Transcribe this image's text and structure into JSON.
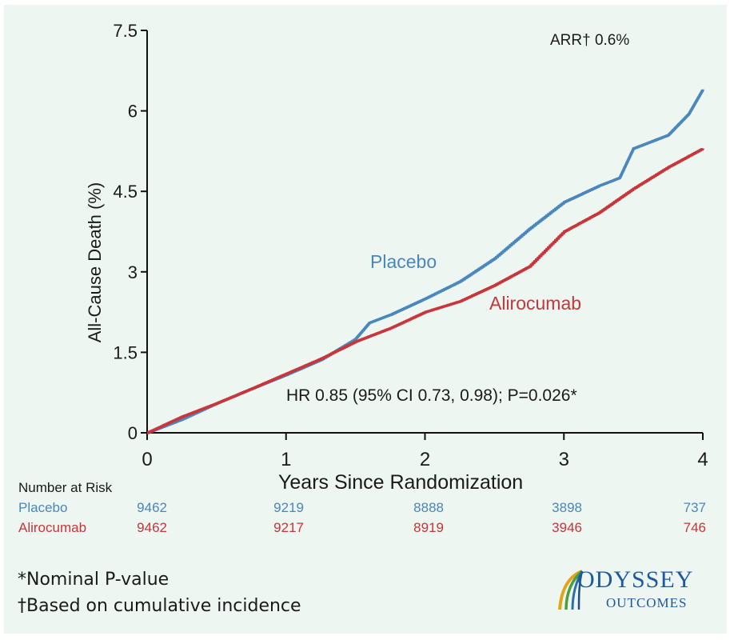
{
  "chart_data": {
    "type": "line",
    "ylabel": "All-Cause Death (%)",
    "xlabel": "Years Since Randomization",
    "xlim": [
      0,
      4
    ],
    "ylim": [
      0,
      7.5
    ],
    "x_ticks": [
      "0",
      "1",
      "2",
      "3",
      "4"
    ],
    "y_ticks": [
      "0",
      "1.5",
      "3",
      "4.5",
      "6",
      "7.5"
    ],
    "x_tick_values": [
      0,
      1,
      2,
      3,
      4
    ],
    "y_tick_values": [
      0,
      1.5,
      3,
      4.5,
      6,
      7.5
    ],
    "grid": false,
    "series": [
      {
        "name": "Placebo",
        "color": "#4a87bd",
        "x": [
          0,
          0.25,
          0.5,
          0.75,
          1.0,
          1.25,
          1.5,
          1.6,
          1.75,
          2.0,
          2.25,
          2.5,
          2.75,
          3.0,
          3.25,
          3.4,
          3.5,
          3.75,
          3.9,
          4.0
        ],
        "y": [
          0,
          0.25,
          0.55,
          0.82,
          1.08,
          1.36,
          1.75,
          2.05,
          2.2,
          2.5,
          2.82,
          3.25,
          3.8,
          4.3,
          4.6,
          4.75,
          5.3,
          5.55,
          5.95,
          6.4
        ]
      },
      {
        "name": "Alirocumab",
        "color": "#c8353a",
        "x": [
          0,
          0.25,
          0.5,
          0.75,
          1.0,
          1.25,
          1.5,
          1.75,
          2.0,
          2.25,
          2.5,
          2.75,
          3.0,
          3.25,
          3.5,
          3.75,
          4.0
        ],
        "y": [
          0,
          0.3,
          0.55,
          0.82,
          1.1,
          1.38,
          1.7,
          1.95,
          2.25,
          2.45,
          2.75,
          3.1,
          3.75,
          4.1,
          4.55,
          4.95,
          5.3
        ]
      }
    ],
    "annotations": {
      "arr": "ARR† 0.6%",
      "hr": "HR 0.85 (95% CI 0.73, 0.98); P=0.026*",
      "placebo_label": "Placebo",
      "alirocumab_label": "Alirocumab"
    }
  },
  "risk_table": {
    "title": "Number at Risk",
    "rows": [
      {
        "label": "Placebo",
        "color": "#4a87bd",
        "values": [
          "9462",
          "9219",
          "8888",
          "3898",
          "737"
        ]
      },
      {
        "label": "Alirocumab",
        "color": "#c8353a",
        "values": [
          "9462",
          "9217",
          "8919",
          "3946",
          "746"
        ]
      }
    ]
  },
  "footnotes": {
    "nominal": "*Nominal P-value",
    "based": "†Based on cumulative incidence"
  },
  "logo": {
    "line1": "ODYSSEY",
    "line2": "OUTCOMES"
  }
}
